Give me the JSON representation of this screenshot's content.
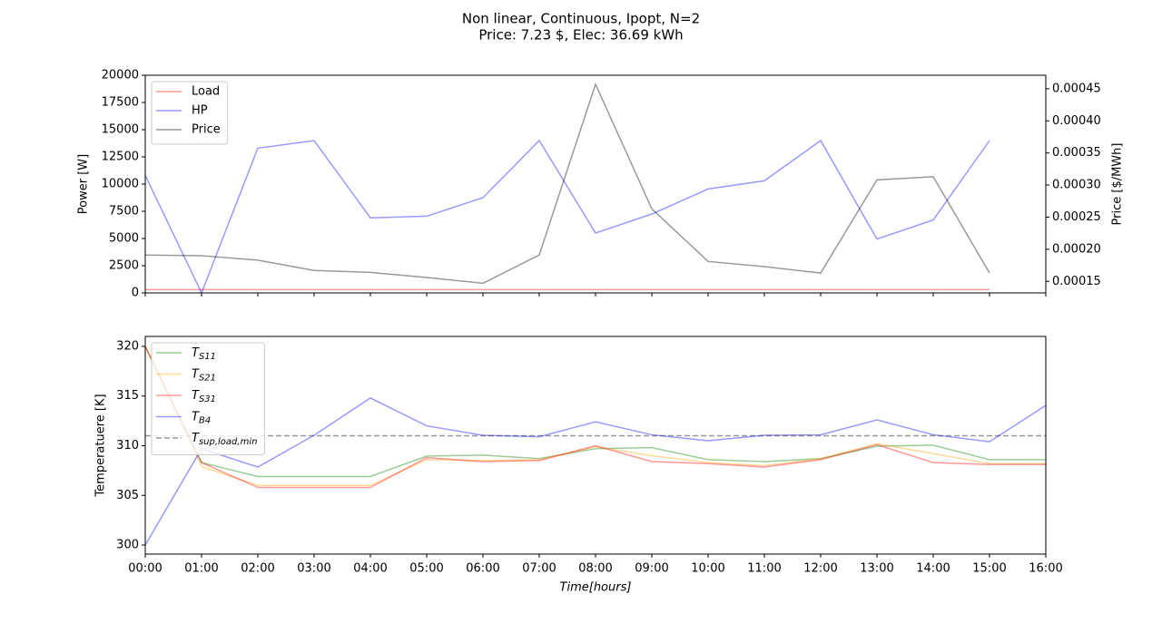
{
  "suptitle": [
    "Non linear, Continuous, Ipopt, N=2",
    "Price: 7.23 $, Elec: 36.69 kWh"
  ],
  "chart_data": [
    {
      "type": "line",
      "y_label": "Power [W]",
      "y2_label": "Price [$/MWh]",
      "ylim": [
        0,
        20000
      ],
      "yticks": [
        0,
        2500,
        5000,
        7500,
        10000,
        12500,
        15000,
        17500,
        20000
      ],
      "y2lim": [
        0.000132,
        0.000471
      ],
      "y2ticks": [
        0.00015,
        {
          "value": 0.0002,
          "label": "0.00020"
        },
        0.00025,
        {
          "value": 0.0003,
          "label": "0.00030"
        },
        0.00035,
        {
          "value": 0.0004,
          "label": "0.00040"
        },
        0.00045
      ],
      "legend": "upper left",
      "series": [
        {
          "name": "Load",
          "color": "#ff0000",
          "alpha": 0.4,
          "values": [
            300,
            300,
            300,
            300,
            300,
            300,
            300,
            300,
            300,
            300,
            300,
            300,
            300,
            300,
            300,
            300,
            null
          ]
        },
        {
          "name": "HP",
          "color": "#0000ff",
          "alpha": 0.4,
          "values": [
            10800,
            0,
            13300,
            14000,
            6900,
            7050,
            8750,
            14000,
            5500,
            7250,
            9550,
            10300,
            14000,
            4950,
            6700,
            14000,
            null
          ]
        },
        {
          "name": "Price",
          "color": "#000000",
          "alpha": 0.4,
          "axis": "y2",
          "values": [
            0.000191,
            0.00019,
            0.000183,
            0.000167,
            0.000164,
            0.000156,
            0.000147,
            0.000191,
            0.000457,
            0.000263,
            0.000181,
            0.000173,
            0.000163,
            0.000308,
            0.000313,
            0.000163,
            null
          ]
        }
      ]
    },
    {
      "type": "line",
      "x_label": "Time[hours]",
      "y_label": "Temperatuere [K]",
      "categories": [
        "00:00",
        "01:00",
        "02:00",
        "03:00",
        "04:00",
        "05:00",
        "06:00",
        "07:00",
        "08:00",
        "09:00",
        "10:00",
        "11:00",
        "12:00",
        "13:00",
        "14:00",
        "15:00",
        "16:00"
      ],
      "ylim": [
        299.09,
        321.0
      ],
      "yticks": [
        300,
        305,
        310,
        315,
        320
      ],
      "legend": "upper left",
      "series": [
        {
          "name": "T",
          "name_sub": "S11",
          "color": "#008000",
          "alpha": 0.4,
          "values": [
            320,
            308.3,
            306.9,
            306.9,
            306.9,
            308.95,
            309.05,
            308.7,
            309.7,
            309.8,
            308.6,
            308.4,
            308.7,
            309.95,
            310.05,
            308.6,
            308.6
          ]
        },
        {
          "name": "T",
          "name_sub": "S21",
          "color": "#ffa500",
          "alpha": 0.4,
          "values": [
            320,
            307.9,
            306.0,
            306.0,
            306.0,
            308.6,
            308.5,
            308.6,
            309.9,
            309.0,
            308.3,
            308.0,
            308.7,
            310.2,
            309.2,
            308.2,
            308.2
          ]
        },
        {
          "name": "T",
          "name_sub": "S31",
          "color": "#ff0000",
          "alpha": 0.4,
          "values": [
            320,
            308.3,
            305.8,
            305.8,
            305.8,
            308.8,
            308.4,
            308.5,
            310.0,
            308.4,
            308.2,
            307.85,
            308.6,
            310.1,
            308.3,
            308.1,
            308.1
          ]
        },
        {
          "name": "T",
          "name_sub": "B4",
          "color": "#0000ff",
          "alpha": 0.4,
          "values": [
            300,
            309.7,
            307.85,
            311.05,
            314.8,
            312.0,
            311.05,
            310.9,
            312.4,
            311.1,
            310.5,
            311.05,
            311.1,
            312.6,
            311.1,
            310.4,
            314.05
          ]
        },
        {
          "name": "T",
          "name_sub": "sup,load,min",
          "color": "#000000",
          "alpha": 0.4,
          "linestyle": "dashed",
          "values": [
            311,
            311,
            311,
            311,
            311,
            311,
            311,
            311,
            311,
            311,
            311,
            311,
            311,
            311,
            311,
            311,
            311
          ]
        }
      ]
    }
  ]
}
